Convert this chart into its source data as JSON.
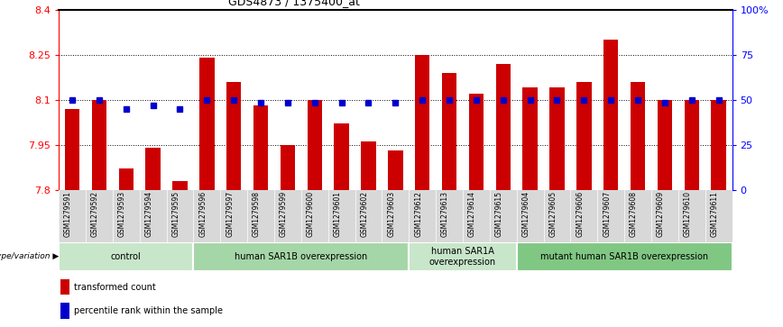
{
  "title": "GDS4873 / 1375400_at",
  "samples": [
    "GSM1279591",
    "GSM1279592",
    "GSM1279593",
    "GSM1279594",
    "GSM1279595",
    "GSM1279596",
    "GSM1279597",
    "GSM1279598",
    "GSM1279599",
    "GSM1279600",
    "GSM1279601",
    "GSM1279602",
    "GSM1279603",
    "GSM1279612",
    "GSM1279613",
    "GSM1279614",
    "GSM1279615",
    "GSM1279604",
    "GSM1279605",
    "GSM1279606",
    "GSM1279607",
    "GSM1279608",
    "GSM1279609",
    "GSM1279610",
    "GSM1279611"
  ],
  "bar_values": [
    8.07,
    8.1,
    7.87,
    7.94,
    7.83,
    8.24,
    8.16,
    8.08,
    7.95,
    8.1,
    8.02,
    7.96,
    7.93,
    8.25,
    8.19,
    8.12,
    8.22,
    8.14,
    8.14,
    8.16,
    8.3,
    8.16,
    8.1,
    8.1,
    8.1
  ],
  "blue_values": [
    8.1,
    8.1,
    8.07,
    8.08,
    8.07,
    8.1,
    8.1,
    8.09,
    8.09,
    8.09,
    8.09,
    8.09,
    8.09,
    8.1,
    8.1,
    8.1,
    8.1,
    8.1,
    8.1,
    8.1,
    8.1,
    8.1,
    8.09,
    8.1,
    8.1
  ],
  "groups": [
    {
      "label": "control",
      "start": 0,
      "end": 5,
      "color": "#c8e6c9"
    },
    {
      "label": "human SAR1B overexpression",
      "start": 5,
      "end": 13,
      "color": "#a5d6a7"
    },
    {
      "label": "human SAR1A\noverexpression",
      "start": 13,
      "end": 17,
      "color": "#c8e6c9"
    },
    {
      "label": "mutant human SAR1B overexpression",
      "start": 17,
      "end": 25,
      "color": "#81c784"
    }
  ],
  "ylim": [
    7.8,
    8.4
  ],
  "yticks": [
    7.8,
    7.95,
    8.1,
    8.25,
    8.4
  ],
  "ytick_labels": [
    "7.8",
    "7.95",
    "8.1",
    "8.25",
    "8.4"
  ],
  "right_yticks": [
    0,
    25,
    50,
    75,
    100
  ],
  "right_ytick_labels": [
    "0",
    "25",
    "50",
    "75",
    "100%"
  ],
  "bar_color": "#cc0000",
  "blue_color": "#0000cc",
  "genotype_label": "genotype/variation",
  "legend_items": [
    {
      "color": "#cc0000",
      "label": "transformed count"
    },
    {
      "color": "#0000cc",
      "label": "percentile rank within the sample"
    }
  ]
}
